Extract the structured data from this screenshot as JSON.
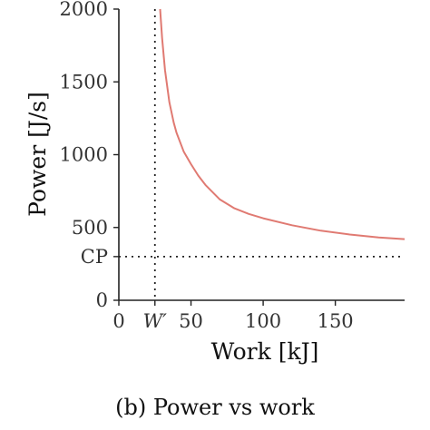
{
  "caption": "(b) Power vs work",
  "chart_data": {
    "type": "line",
    "title": "",
    "xlabel": "Work [kJ]",
    "ylabel": "Power [J/s]",
    "xlim": [
      0,
      198
    ],
    "ylim": [
      0,
      2000
    ],
    "xticks": [
      {
        "value": 0,
        "label": "0"
      },
      {
        "value": 25,
        "label": "W′",
        "italic": true
      },
      {
        "value": 50,
        "label": "50"
      },
      {
        "value": 100,
        "label": "100"
      },
      {
        "value": 150,
        "label": "150"
      }
    ],
    "yticks": [
      {
        "value": 0,
        "label": "0"
      },
      {
        "value": 300,
        "label": "CP"
      },
      {
        "value": 500,
        "label": "500"
      },
      {
        "value": 1000,
        "label": "1000"
      },
      {
        "value": 1500,
        "label": "1500"
      },
      {
        "value": 2000,
        "label": "2000"
      }
    ],
    "reference_lines": [
      {
        "orientation": "vertical",
        "x": 25,
        "style": "dotted",
        "label": "W′"
      },
      {
        "orientation": "horizontal",
        "y": 300,
        "style": "dotted",
        "label": "CP"
      }
    ],
    "series": [
      {
        "color": "#e07a72",
        "x": [
          28.6,
          30,
          32,
          35,
          38,
          40,
          45,
          50,
          55,
          60,
          70,
          80,
          90,
          100,
          120,
          140,
          160,
          180,
          198
        ],
        "y": [
          2000,
          1800,
          1580,
          1360,
          1220,
          1150,
          1020,
          935,
          857,
          792,
          692,
          632,
          593,
          563,
          515,
          478,
          452,
          432,
          420
        ]
      }
    ],
    "grid": false,
    "legend": "none"
  }
}
